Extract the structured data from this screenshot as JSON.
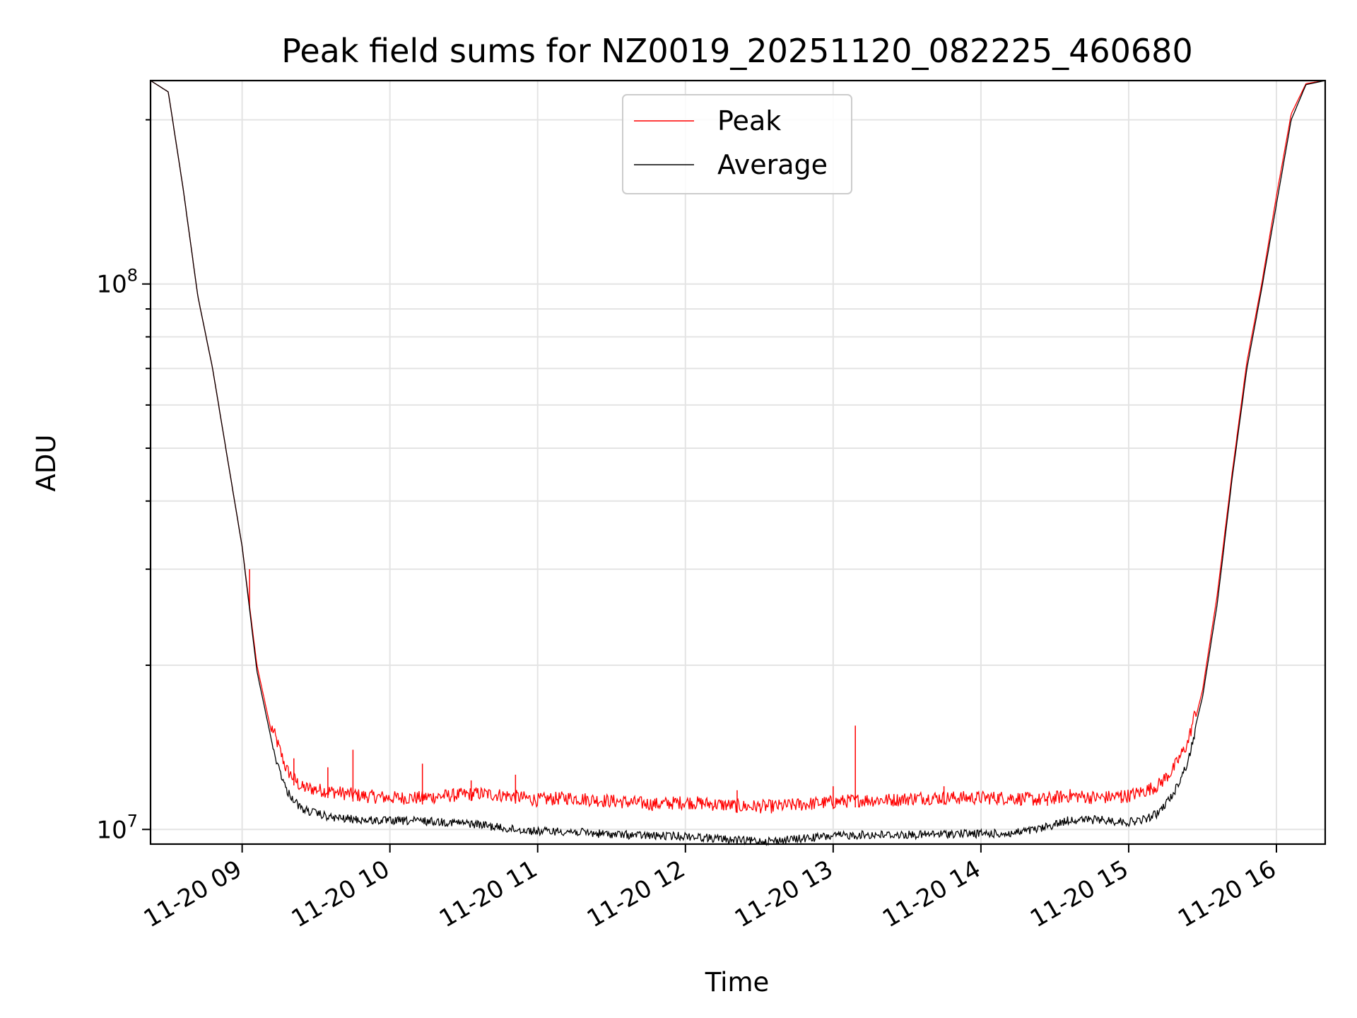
{
  "chart_data": {
    "type": "line",
    "title": "Peak field sums for NZ0019_20251120_082225_460680",
    "xlabel": "Time",
    "ylabel": "ADU",
    "yscale": "log",
    "ylim": [
      9400000,
      236000000
    ],
    "xlim_hours": [
      8.38,
      16.33
    ],
    "grid": true,
    "legend_position": "upper-center",
    "x_ticks": [
      {
        "value": 9,
        "label": "11-20 09"
      },
      {
        "value": 10,
        "label": "11-20 10"
      },
      {
        "value": 11,
        "label": "11-20 11"
      },
      {
        "value": 12,
        "label": "11-20 12"
      },
      {
        "value": 13,
        "label": "11-20 13"
      },
      {
        "value": 14,
        "label": "11-20 14"
      },
      {
        "value": 15,
        "label": "11-20 15"
      },
      {
        "value": 16,
        "label": "11-20 16"
      }
    ],
    "y_ticks_major": [
      {
        "value": 10000000,
        "base": "10",
        "exp": "7"
      },
      {
        "value": 100000000,
        "base": "10",
        "exp": "8"
      }
    ],
    "series": [
      {
        "name": "Peak",
        "color": "#ff0000",
        "x": [
          8.38,
          8.5,
          8.6,
          8.7,
          8.8,
          8.9,
          9.0,
          9.1,
          9.2,
          9.3,
          9.4,
          9.6,
          9.8,
          10.0,
          10.2,
          10.4,
          10.6,
          10.8,
          11.0,
          11.2,
          11.4,
          11.6,
          11.8,
          12.0,
          12.2,
          12.4,
          12.6,
          12.8,
          13.0,
          13.2,
          13.4,
          13.6,
          13.8,
          14.0,
          14.2,
          14.4,
          14.6,
          14.8,
          15.0,
          15.1,
          15.2,
          15.3,
          15.4,
          15.5,
          15.6,
          15.7,
          15.8,
          15.9,
          16.0,
          16.1,
          16.2,
          16.33
        ],
        "y": [
          236000000,
          225000000,
          150000000,
          95000000,
          70000000,
          48000000,
          33000000,
          20000000,
          15000000,
          12500000,
          11600000,
          11400000,
          11200000,
          11100000,
          11100000,
          11200000,
          11300000,
          11200000,
          11000000,
          11100000,
          11000000,
          10900000,
          10800000,
          10900000,
          10800000,
          10700000,
          10700000,
          10800000,
          10900000,
          11000000,
          11000000,
          11100000,
          11100000,
          11100000,
          11100000,
          11000000,
          11200000,
          11100000,
          11200000,
          11400000,
          11700000,
          12500000,
          14000000,
          18000000,
          27000000,
          45000000,
          72000000,
          100000000,
          145000000,
          205000000,
          233000000,
          236000000
        ],
        "spikes": [
          {
            "x": 9.05,
            "y": 30000000
          },
          {
            "x": 9.35,
            "y": 13500000
          },
          {
            "x": 9.58,
            "y": 13000000
          },
          {
            "x": 9.75,
            "y": 14000000
          },
          {
            "x": 10.22,
            "y": 13200000
          },
          {
            "x": 10.55,
            "y": 12300000
          },
          {
            "x": 10.85,
            "y": 12600000
          },
          {
            "x": 12.35,
            "y": 11800000
          },
          {
            "x": 13.0,
            "y": 12000000
          },
          {
            "x": 13.15,
            "y": 15500000
          },
          {
            "x": 13.75,
            "y": 12000000
          },
          {
            "x": 14.45,
            "y": 11500000
          },
          {
            "x": 14.95,
            "y": 11800000
          }
        ]
      },
      {
        "name": "Average",
        "color": "#000000",
        "x": [
          8.38,
          8.5,
          8.6,
          8.7,
          8.8,
          8.9,
          9.0,
          9.1,
          9.2,
          9.3,
          9.4,
          9.6,
          9.8,
          10.0,
          10.2,
          10.4,
          10.6,
          10.8,
          11.0,
          11.2,
          11.4,
          11.6,
          11.8,
          12.0,
          12.2,
          12.4,
          12.6,
          12.8,
          13.0,
          13.2,
          13.4,
          13.6,
          13.8,
          14.0,
          14.2,
          14.4,
          14.6,
          14.8,
          15.0,
          15.1,
          15.2,
          15.3,
          15.4,
          15.5,
          15.6,
          15.7,
          15.8,
          15.9,
          16.0,
          16.1,
          16.2,
          16.33
        ],
        "y": [
          236000000,
          225000000,
          150000000,
          95000000,
          70000000,
          48000000,
          33000000,
          19500000,
          14500000,
          12000000,
          11100000,
          10700000,
          10600000,
          10550000,
          10550000,
          10500000,
          10400000,
          10200000,
          10100000,
          10100000,
          10000000,
          9950000,
          9900000,
          9900000,
          9800000,
          9700000,
          9700000,
          9800000,
          9900000,
          9950000,
          9950000,
          9950000,
          10000000,
          10000000,
          10000000,
          10200000,
          10600000,
          10600000,
          10500000,
          10600000,
          10900000,
          11800000,
          13500000,
          17500000,
          26000000,
          44000000,
          70000000,
          98000000,
          140000000,
          200000000,
          232000000,
          236000000
        ]
      }
    ]
  }
}
